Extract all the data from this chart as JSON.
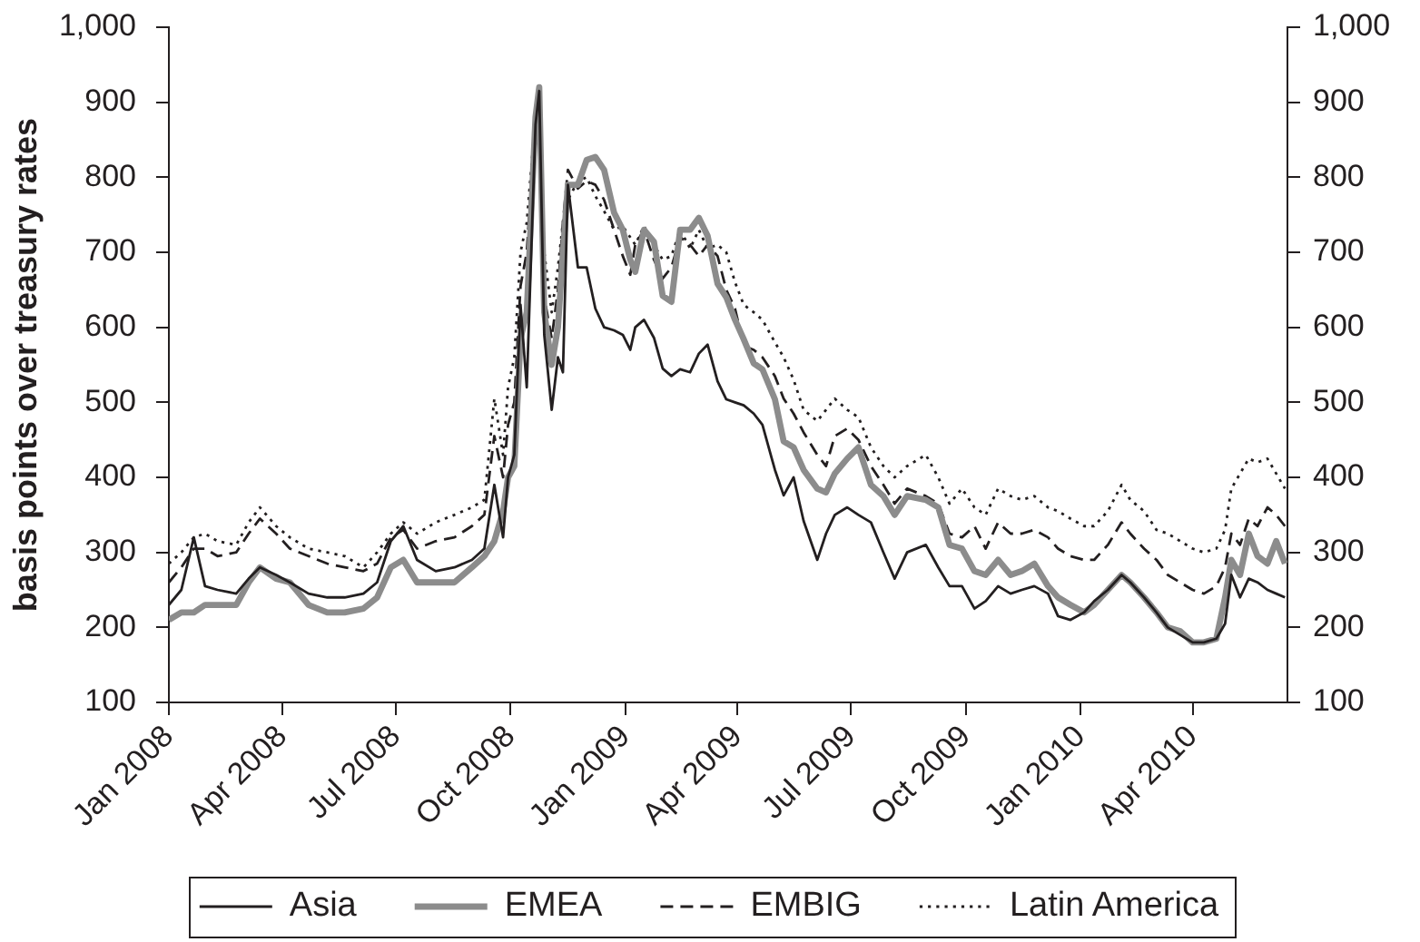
{
  "chart_data": {
    "type": "line",
    "ylabel": "basis points over treasury rates",
    "x": [
      "2008-01-01",
      "2008-01-11",
      "2008-01-21",
      "2008-01-30",
      "2008-02-09",
      "2008-02-24",
      "2008-03-05",
      "2008-03-14",
      "2008-03-27",
      "2008-04-07",
      "2008-04-22",
      "2008-05-07",
      "2008-05-21",
      "2008-06-05",
      "2008-06-16",
      "2008-06-27",
      "2008-07-07",
      "2008-07-18",
      "2008-08-02",
      "2008-08-17",
      "2008-08-31",
      "2008-09-10",
      "2008-09-18",
      "2008-09-25",
      "2008-09-29",
      "2008-10-04",
      "2008-10-09",
      "2008-10-14",
      "2008-10-21",
      "2008-10-24",
      "2008-10-28",
      "2008-11-03",
      "2008-11-08",
      "2008-11-12",
      "2008-11-16",
      "2008-11-24",
      "2008-12-01",
      "2008-12-08",
      "2008-12-15",
      "2008-12-23",
      "2008-12-30",
      "2009-01-05",
      "2009-01-09",
      "2009-01-16",
      "2009-01-24",
      "2009-01-31",
      "2009-02-07",
      "2009-02-14",
      "2009-02-22",
      "2009-03-01",
      "2009-03-08",
      "2009-03-16",
      "2009-03-23",
      "2009-03-30",
      "2009-04-06",
      "2009-04-14",
      "2009-04-21",
      "2009-05-01",
      "2009-05-08",
      "2009-05-16",
      "2009-05-24",
      "2009-06-04",
      "2009-06-11",
      "2009-06-18",
      "2009-06-28",
      "2009-07-07",
      "2009-07-17",
      "2009-07-27",
      "2009-08-05",
      "2009-08-15",
      "2009-08-30",
      "2009-09-09",
      "2009-09-18",
      "2009-09-28",
      "2009-10-08",
      "2009-10-17",
      "2009-10-27",
      "2009-11-06",
      "2009-11-15",
      "2009-11-25",
      "2009-12-06",
      "2009-12-14",
      "2009-12-24",
      "2010-01-04",
      "2010-01-12",
      "2010-01-23",
      "2010-02-03",
      "2010-02-10",
      "2010-02-21",
      "2010-03-03",
      "2010-03-12",
      "2010-03-22",
      "2010-04-01",
      "2010-04-10",
      "2010-04-20",
      "2010-04-27",
      "2010-05-02",
      "2010-05-09",
      "2010-05-16",
      "2010-05-23",
      "2010-05-31",
      "2010-06-07",
      "2010-06-14"
    ],
    "xlim": [
      "2008-01-01",
      "2010-06-16"
    ],
    "xticks": [
      {
        "value": "2008-01",
        "label": "Jan 2008"
      },
      {
        "value": "2008-04",
        "label": "Apr 2008"
      },
      {
        "value": "2008-07",
        "label": "Jul 2008"
      },
      {
        "value": "2008-10",
        "label": "Oct 2008"
      },
      {
        "value": "2009-01",
        "label": "Jan 2009"
      },
      {
        "value": "2009-04",
        "label": "Apr 2009"
      },
      {
        "value": "2009-07",
        "label": "Jul 2009"
      },
      {
        "value": "2009-10",
        "label": "Oct 2009"
      },
      {
        "value": "2010-01",
        "label": "Jan 2010"
      },
      {
        "value": "2010-04",
        "label": "Apr 2010"
      }
    ],
    "ylim": [
      100,
      1000
    ],
    "yticks": [
      100,
      200,
      300,
      400,
      500,
      600,
      700,
      800,
      900,
      {
        "value": 1000,
        "label": "1,000"
      }
    ],
    "y2lim": [
      100,
      1000
    ],
    "y2ticks": [
      100,
      200,
      300,
      400,
      500,
      600,
      700,
      800,
      900,
      {
        "value": 1000,
        "label": "1,000"
      }
    ],
    "grid": false,
    "legend": "bottom",
    "marker": "none",
    "series": [
      {
        "name": "Asia",
        "color": "#231f20",
        "line_style": "solid",
        "values": [
          230,
          250,
          320,
          255,
          250,
          245,
          265,
          280,
          270,
          260,
          245,
          240,
          240,
          245,
          260,
          315,
          335,
          290,
          275,
          280,
          290,
          305,
          390,
          320,
          400,
          430,
          630,
          520,
          870,
          915,
          590,
          490,
          560,
          540,
          790,
          680,
          680,
          625,
          600,
          596,
          590,
          570,
          600,
          610,
          586,
          545,
          535,
          544,
          540,
          565,
          577,
          528,
          504,
          500,
          496,
          485,
          470,
          410,
          376,
          400,
          342,
          290,
          325,
          350,
          360,
          350,
          340,
          300,
          265,
          300,
          310,
          280,
          255,
          255,
          225,
          235,
          255,
          245,
          250,
          255,
          245,
          215,
          210,
          220,
          235,
          250,
          270,
          260,
          240,
          220,
          200,
          190,
          180,
          180,
          185,
          205,
          270,
          240,
          265,
          260,
          250,
          245,
          240
        ]
      },
      {
        "name": "EMEA",
        "color": "#8c8c8c",
        "line_style": "solid",
        "values": [
          210,
          220,
          220,
          230,
          230,
          230,
          260,
          280,
          265,
          260,
          230,
          220,
          220,
          225,
          240,
          280,
          290,
          260,
          260,
          260,
          280,
          295,
          315,
          355,
          400,
          415,
          585,
          620,
          880,
          920,
          620,
          550,
          600,
          700,
          790,
          790,
          823,
          827,
          810,
          753,
          730,
          690,
          674,
          730,
          714,
          642,
          634,
          730,
          730,
          746,
          722,
          658,
          640,
          610,
          584,
          552,
          544,
          504,
          448,
          440,
          410,
          385,
          380,
          405,
          425,
          440,
          390,
          375,
          350,
          375,
          370,
          360,
          310,
          305,
          275,
          270,
          290,
          270,
          275,
          285,
          255,
          240,
          230,
          220,
          230,
          250,
          270,
          260,
          240,
          220,
          200,
          195,
          180,
          180,
          185,
          240,
          290,
          270,
          325,
          295,
          285,
          315,
          285
        ]
      },
      {
        "name": "EMBIG",
        "color": "#231f20",
        "line_style": "dashed",
        "values": [
          260,
          280,
          305,
          305,
          295,
          300,
          325,
          345,
          325,
          305,
          295,
          285,
          280,
          275,
          285,
          320,
          330,
          305,
          315,
          320,
          335,
          350,
          455,
          400,
          470,
          500,
          655,
          700,
          880,
          905,
          640,
          585,
          650,
          740,
          810,
          785,
          795,
          790,
          770,
          730,
          695,
          670,
          710,
          730,
          690,
          665,
          680,
          720,
          710,
          695,
          710,
          695,
          650,
          625,
          575,
          570,
          560,
          535,
          505,
          485,
          460,
          430,
          415,
          455,
          465,
          450,
          415,
          390,
          365,
          385,
          375,
          365,
          325,
          320,
          335,
          305,
          340,
          325,
          325,
          330,
          320,
          305,
          295,
          290,
          290,
          310,
          340,
          325,
          305,
          290,
          270,
          260,
          250,
          245,
          255,
          280,
          325,
          310,
          345,
          335,
          360,
          350,
          335
        ]
      },
      {
        "name": "Latin America",
        "color": "#231f20",
        "line_style": "dotted",
        "values": [
          285,
          300,
          320,
          325,
          315,
          310,
          340,
          360,
          335,
          320,
          305,
          300,
          295,
          280,
          300,
          325,
          340,
          325,
          340,
          350,
          360,
          370,
          505,
          430,
          520,
          560,
          700,
          740,
          880,
          895,
          700,
          620,
          680,
          740,
          770,
          795,
          800,
          775,
          755,
          730,
          735,
          720,
          710,
          735,
          710,
          690,
          695,
          730,
          705,
          730,
          705,
          710,
          700,
          660,
          630,
          620,
          610,
          580,
          560,
          530,
          490,
          475,
          490,
          505,
          490,
          480,
          440,
          415,
          400,
          415,
          430,
          400,
          365,
          385,
          360,
          350,
          385,
          375,
          370,
          375,
          360,
          355,
          345,
          335,
          335,
          355,
          390,
          370,
          355,
          330,
          325,
          315,
          305,
          300,
          305,
          330,
          385,
          405,
          425,
          420,
          425,
          405,
          385
        ]
      }
    ]
  }
}
